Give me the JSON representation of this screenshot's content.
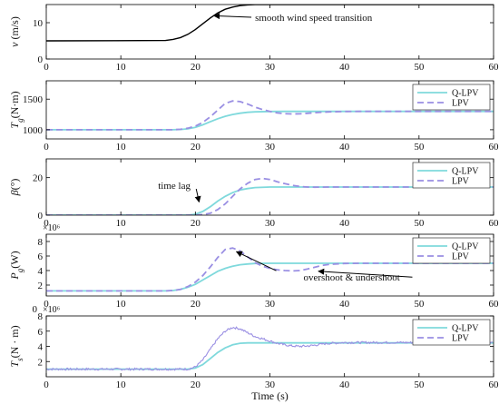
{
  "figure": {
    "xlabel": "Time (s)",
    "colors": {
      "qlpv": "#7fd9dc",
      "lpv": "#9a8fe3",
      "wind": "#000000"
    }
  },
  "chart_data": [
    {
      "type": "line",
      "ylabel": {
        "sym": "v",
        "sub": "",
        "unit": " (m/s)"
      },
      "xlim": [
        0,
        60
      ],
      "ylim": [
        0,
        15
      ],
      "xticks": [
        0,
        10,
        20,
        30,
        40,
        50,
        60
      ],
      "yticks": [
        0,
        10
      ],
      "multiplier": "",
      "series": [
        {
          "key": "wind",
          "style": "solid",
          "x": [
            0,
            16,
            17,
            18,
            19,
            20,
            21,
            22,
            23,
            24,
            25,
            26,
            27,
            28,
            30,
            60
          ],
          "y": [
            5,
            5.1,
            5.4,
            5.9,
            6.8,
            8.1,
            9.7,
            11.3,
            12.7,
            13.7,
            14.3,
            14.7,
            14.9,
            15,
            15,
            15
          ]
        }
      ],
      "legend": [],
      "annotations": [
        {
          "text": "smooth wind speed transition",
          "x": 28,
          "y": 10.5,
          "arrow_to": [
            22.5,
            11.9
          ]
        }
      ]
    },
    {
      "type": "line",
      "ylabel": {
        "sym": "T",
        "sub": "g",
        "unit": "(N·m)"
      },
      "xlim": [
        0,
        60
      ],
      "ylim": [
        850,
        1800
      ],
      "xticks": [
        0,
        10,
        20,
        30,
        40,
        50,
        60
      ],
      "yticks": [
        1000,
        1500
      ],
      "multiplier": "",
      "series": [
        {
          "key": "qlpv",
          "name": "Q-LPV",
          "style": "solid",
          "x": [
            0,
            17,
            18,
            19,
            20,
            21,
            22,
            23,
            24,
            25,
            26,
            27,
            28,
            30,
            32,
            60
          ],
          "y": [
            1000,
            1000,
            1005,
            1015,
            1040,
            1080,
            1130,
            1180,
            1220,
            1250,
            1270,
            1285,
            1292,
            1298,
            1300,
            1300
          ]
        },
        {
          "key": "lpv",
          "name": "LPV",
          "style": "dashed",
          "x": [
            0,
            17,
            18,
            19,
            20,
            21,
            22,
            23,
            24,
            25,
            26,
            27,
            28,
            29,
            30,
            31,
            32,
            33,
            34,
            35,
            36,
            37,
            38,
            40,
            42,
            60
          ],
          "y": [
            1000,
            1000,
            1008,
            1025,
            1060,
            1120,
            1210,
            1320,
            1430,
            1470,
            1460,
            1420,
            1370,
            1330,
            1300,
            1275,
            1262,
            1258,
            1260,
            1268,
            1278,
            1287,
            1293,
            1298,
            1300,
            1300
          ]
        }
      ],
      "legend": [
        "Q-LPV",
        "LPV"
      ],
      "annotations": []
    },
    {
      "type": "line",
      "ylabel": {
        "sym": "β",
        "sub": "",
        "unit": "(°)"
      },
      "xlim": [
        0,
        60
      ],
      "ylim": [
        0,
        30
      ],
      "xticks": [
        0,
        10,
        20,
        30,
        40,
        50,
        60
      ],
      "yticks": [
        0,
        20
      ],
      "multiplier": "",
      "series": [
        {
          "key": "qlpv",
          "name": "Q-LPV",
          "style": "solid",
          "x": [
            0,
            19,
            20,
            21,
            22,
            23,
            24,
            25,
            26,
            27,
            28,
            30,
            32,
            60
          ],
          "y": [
            0,
            0,
            0.5,
            2,
            4.5,
            7.5,
            10,
            12,
            13.4,
            14.2,
            14.7,
            15,
            15,
            15
          ]
        },
        {
          "key": "lpv",
          "name": "LPV",
          "style": "dashed",
          "x": [
            0,
            20,
            21,
            22,
            23,
            24,
            25,
            26,
            27,
            28,
            29,
            30,
            31,
            32,
            33,
            34,
            35,
            36,
            38,
            40,
            60
          ],
          "y": [
            0,
            0,
            0.3,
            1,
            3,
            6,
            10,
            14,
            17,
            19,
            19.6,
            19,
            17.8,
            16.8,
            15.9,
            15.3,
            15,
            14.9,
            15,
            15,
            15
          ]
        }
      ],
      "legend": [
        "Q-LPV",
        "LPV"
      ],
      "annotations": [
        {
          "text": "time lag",
          "x": 15,
          "y": 14,
          "arrow_to": [
            20.5,
            7
          ]
        }
      ]
    },
    {
      "type": "line",
      "ylabel": {
        "sym": "P",
        "sub": "g",
        "unit": "(W)"
      },
      "xlim": [
        0,
        60
      ],
      "ylim": [
        0.5,
        9
      ],
      "xticks": [
        0,
        10,
        20,
        30,
        40,
        50,
        60
      ],
      "yticks": [
        2,
        4,
        6,
        8
      ],
      "multiplier": "×10⁶",
      "series": [
        {
          "key": "qlpv",
          "name": "Q-LPV",
          "style": "solid",
          "x": [
            0,
            16,
            17,
            18,
            19,
            20,
            21,
            22,
            23,
            24,
            25,
            26,
            27,
            28,
            30,
            60
          ],
          "y": [
            1.2,
            1.2,
            1.25,
            1.4,
            1.7,
            2.1,
            2.7,
            3.3,
            3.9,
            4.3,
            4.6,
            4.8,
            4.9,
            4.97,
            5,
            5
          ]
        },
        {
          "key": "lpv",
          "name": "LPV",
          "style": "dashed",
          "x": [
            0,
            16,
            17,
            18,
            19,
            20,
            21,
            22,
            23,
            24,
            25,
            26,
            27,
            28,
            29,
            30,
            31,
            32,
            33,
            34,
            35,
            36,
            37,
            38,
            40,
            42,
            60
          ],
          "y": [
            1.2,
            1.2,
            1.25,
            1.4,
            1.8,
            2.4,
            3.3,
            4.5,
            5.8,
            6.9,
            7.1,
            6.7,
            5.9,
            5.1,
            4.6,
            4.3,
            4.1,
            4.0,
            3.95,
            4.0,
            4.2,
            4.45,
            4.7,
            4.85,
            4.98,
            5,
            5
          ]
        }
      ],
      "legend": [
        "Q-LPV",
        "LPV"
      ],
      "annotations": [
        {
          "text": "overshoot & undershoot",
          "x": 34.5,
          "y": 2.6,
          "arrow_to": [
            25.5,
            6.6
          ],
          "arrow_to2": [
            36.5,
            3.9
          ]
        }
      ]
    },
    {
      "type": "line",
      "ylabel": {
        "sym": "T",
        "sub": "s",
        "unit": "(N · m)"
      },
      "xlim": [
        0,
        60
      ],
      "ylim": [
        0,
        8
      ],
      "xticks": [
        0,
        10,
        20,
        30,
        40,
        50,
        60
      ],
      "yticks": [
        2,
        4,
        6,
        8
      ],
      "multiplier": "×10⁶",
      "multiplier_prefix": "0",
      "series": [
        {
          "key": "qlpv",
          "name": "Q-LPV",
          "style": "solid",
          "x": [
            0,
            19,
            20,
            21,
            22,
            23,
            24,
            25,
            26,
            27,
            28,
            29,
            30,
            32,
            34,
            36,
            38,
            40,
            60
          ],
          "y": [
            1,
            1,
            1.15,
            1.6,
            2.4,
            3.2,
            3.8,
            4.2,
            4.4,
            4.45,
            4.45,
            4.45,
            4.45,
            4.45,
            4.45,
            4.45,
            4.45,
            4.45,
            4.45
          ]
        },
        {
          "key": "lpv",
          "name": "LPV",
          "style": "noisy",
          "x": [
            0,
            19,
            20,
            21,
            22,
            23,
            24,
            25,
            26,
            27,
            28,
            29,
            30,
            31,
            32,
            33,
            34,
            35,
            36,
            37,
            38,
            40,
            42,
            60
          ],
          "y": [
            1,
            1,
            1.3,
            2.2,
            3.6,
            5.0,
            6.0,
            6.5,
            6.3,
            5.8,
            5.3,
            5.0,
            4.7,
            4.4,
            4.2,
            4.05,
            4.0,
            4.05,
            4.15,
            4.3,
            4.4,
            4.5,
            4.5,
            4.5
          ]
        }
      ],
      "legend": [
        "Q-LPV",
        "LPV"
      ],
      "annotations": []
    }
  ]
}
